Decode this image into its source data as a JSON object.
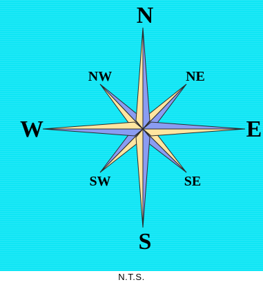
{
  "compass": {
    "north": "N",
    "northeast": "NE",
    "east": "E",
    "southeast": "SE",
    "south": "S",
    "southwest": "SW",
    "west": "W",
    "northwest": "NW"
  },
  "colors": {
    "background": "#0fe6f5",
    "blue_point": "#8a9cf2",
    "yellow_point": "#ffe5a0",
    "outline": "#2b2b2b"
  },
  "scale_note": "N.T.S."
}
